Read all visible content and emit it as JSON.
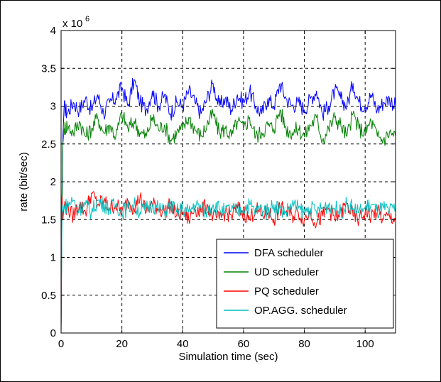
{
  "chart_data": {
    "type": "line",
    "xlabel": "Simulation time (sec)",
    "ylabel": "rate (bit/sec)",
    "xlim": [
      0,
      110
    ],
    "ylim": [
      0,
      4
    ],
    "y_exponent_label": "x 10",
    "y_exponent_power": "6",
    "xticks": [
      "0",
      "20",
      "40",
      "60",
      "80",
      "100"
    ],
    "yticks": [
      "0",
      "0.5",
      "1",
      "1.5",
      "2",
      "2.5",
      "3",
      "3.5",
      "4"
    ],
    "grid": true,
    "legend_position": "bottom-right",
    "series": [
      {
        "name": "DFA scheduler",
        "color": "#0000ff",
        "x": [
          0,
          0.3,
          0.6,
          1,
          2,
          4,
          6,
          8,
          10,
          12,
          14,
          16,
          18,
          20,
          22,
          24,
          26,
          28,
          30,
          32,
          34,
          36,
          38,
          40,
          42,
          44,
          46,
          48,
          50,
          52,
          54,
          56,
          58,
          60,
          62,
          64,
          66,
          68,
          70,
          72,
          74,
          76,
          78,
          80,
          82,
          84,
          86,
          88,
          90,
          92,
          94,
          96,
          98,
          100,
          102,
          104,
          106,
          108,
          110
        ],
        "y": [
          0,
          1.8,
          2.6,
          3.0,
          2.9,
          3.05,
          2.95,
          3.1,
          2.95,
          3.15,
          2.9,
          3.05,
          3.1,
          3.25,
          3.0,
          3.35,
          3.05,
          2.95,
          3.2,
          3.0,
          3.15,
          2.9,
          3.05,
          3.0,
          3.2,
          3.05,
          2.9,
          3.1,
          3.3,
          3.0,
          3.1,
          2.95,
          3.15,
          3.05,
          3.2,
          3.0,
          2.9,
          3.1,
          3.0,
          3.3,
          3.1,
          3.0,
          3.05,
          2.95,
          3.1,
          3.2,
          2.9,
          3.0,
          3.2,
          3.1,
          3.0,
          3.3,
          3.05,
          3.0,
          3.15,
          2.95,
          3.05,
          3.1,
          3.0
        ]
      },
      {
        "name": "UD scheduler",
        "color": "#008000",
        "x": [
          0,
          0.3,
          0.6,
          1,
          2,
          4,
          6,
          8,
          10,
          12,
          14,
          16,
          18,
          20,
          22,
          24,
          26,
          28,
          30,
          32,
          34,
          36,
          38,
          40,
          42,
          44,
          46,
          48,
          50,
          52,
          54,
          56,
          58,
          60,
          62,
          64,
          66,
          68,
          70,
          72,
          74,
          76,
          78,
          80,
          82,
          84,
          86,
          88,
          90,
          92,
          94,
          96,
          98,
          100,
          102,
          104,
          106,
          108,
          110
        ],
        "y": [
          0,
          1.6,
          2.5,
          2.7,
          2.75,
          2.65,
          2.8,
          2.6,
          2.7,
          2.85,
          2.65,
          2.75,
          2.6,
          2.9,
          2.7,
          2.8,
          2.65,
          2.6,
          2.85,
          2.7,
          2.75,
          2.55,
          2.65,
          2.7,
          2.85,
          2.7,
          2.6,
          2.75,
          2.9,
          2.65,
          2.7,
          2.6,
          2.8,
          2.7,
          2.85,
          2.6,
          2.65,
          2.75,
          2.7,
          2.95,
          2.7,
          2.65,
          2.7,
          2.6,
          2.75,
          2.85,
          2.55,
          2.7,
          2.85,
          2.75,
          2.6,
          2.9,
          2.7,
          2.65,
          2.8,
          2.6,
          2.55,
          2.65,
          2.6
        ]
      },
      {
        "name": "PQ scheduler",
        "color": "#ff0000",
        "x": [
          0,
          0.3,
          0.6,
          1,
          2,
          4,
          6,
          8,
          10,
          12,
          14,
          16,
          18,
          20,
          22,
          24,
          26,
          28,
          30,
          32,
          34,
          36,
          38,
          40,
          42,
          44,
          46,
          48,
          50,
          52,
          54,
          56,
          58,
          60,
          62,
          64,
          66,
          68,
          70,
          72,
          74,
          76,
          78,
          80,
          82,
          84,
          86,
          88,
          90,
          92,
          94,
          96,
          98,
          100,
          102,
          104,
          106,
          108,
          110
        ],
        "y": [
          0.5,
          1.8,
          1.5,
          1.7,
          1.65,
          1.55,
          1.7,
          1.6,
          1.85,
          1.7,
          1.75,
          1.65,
          1.7,
          1.6,
          1.75,
          1.65,
          1.8,
          1.6,
          1.7,
          1.65,
          1.6,
          1.7,
          1.55,
          1.6,
          1.5,
          1.65,
          1.6,
          1.7,
          1.55,
          1.5,
          1.6,
          1.55,
          1.65,
          1.6,
          1.5,
          1.65,
          1.55,
          1.6,
          1.5,
          1.65,
          1.6,
          1.55,
          1.6,
          1.5,
          1.6,
          1.45,
          1.55,
          1.65,
          1.5,
          1.6,
          1.7,
          1.55,
          1.5,
          1.6,
          1.55,
          1.6,
          1.5,
          1.55,
          1.5
        ]
      },
      {
        "name": "OP.AGG. scheduler",
        "color": "#00bfbf",
        "x": [
          0,
          0.3,
          0.6,
          1,
          2,
          4,
          6,
          8,
          10,
          12,
          14,
          16,
          18,
          20,
          22,
          24,
          26,
          28,
          30,
          32,
          34,
          36,
          38,
          40,
          42,
          44,
          46,
          48,
          50,
          52,
          54,
          56,
          58,
          60,
          62,
          64,
          66,
          68,
          70,
          72,
          74,
          76,
          78,
          80,
          82,
          84,
          86,
          88,
          90,
          92,
          94,
          96,
          98,
          100,
          102,
          104,
          106,
          108,
          110
        ],
        "y": [
          0,
          1.7,
          1.6,
          1.65,
          1.7,
          1.75,
          1.65,
          1.7,
          1.6,
          1.75,
          1.7,
          1.65,
          1.7,
          1.6,
          1.65,
          1.7,
          1.6,
          1.65,
          1.7,
          1.65,
          1.6,
          1.7,
          1.6,
          1.65,
          1.6,
          1.7,
          1.65,
          1.6,
          1.7,
          1.65,
          1.6,
          1.65,
          1.6,
          1.65,
          1.7,
          1.6,
          1.65,
          1.6,
          1.7,
          1.65,
          1.6,
          1.7,
          1.65,
          1.6,
          1.65,
          1.6,
          1.65,
          1.7,
          1.65,
          1.6,
          1.7,
          1.65,
          1.6,
          1.65,
          1.7,
          1.6,
          1.65,
          1.6,
          1.65
        ]
      }
    ]
  }
}
